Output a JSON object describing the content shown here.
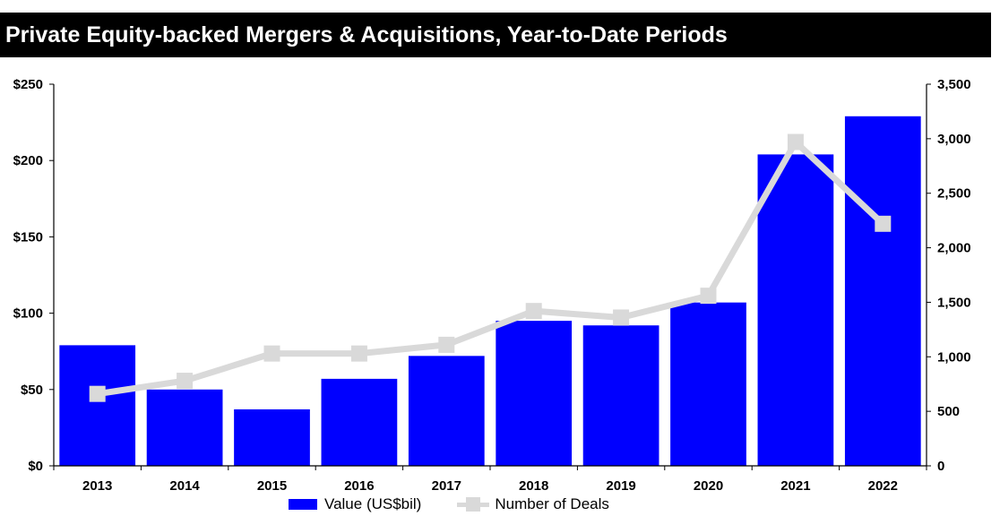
{
  "title": "Private Equity-backed Mergers & Acquisitions, Year-to-Date Periods",
  "legend": {
    "value_label": "Value (US$bil)",
    "deals_label": "Number of Deals"
  },
  "colors": {
    "bar": "#0000ff",
    "line": "#d9d9d9",
    "title_bg": "#000000"
  },
  "chart_data": {
    "type": "bar",
    "title": "Private Equity-backed Mergers & Acquisitions, Year-to-Date Periods",
    "categories": [
      "2013",
      "2014",
      "2015",
      "2016",
      "2017",
      "2018",
      "2019",
      "2020",
      "2021",
      "2022"
    ],
    "series": [
      {
        "name": "Value (US$bil)",
        "type": "bar",
        "axis": "left",
        "values": [
          79,
          50,
          37,
          57,
          72,
          95,
          92,
          107,
          204,
          229
        ]
      },
      {
        "name": "Number of Deals",
        "type": "line",
        "axis": "right",
        "values": [
          660,
          780,
          1030,
          1030,
          1110,
          1420,
          1360,
          1560,
          2970,
          2220
        ]
      }
    ],
    "left_axis": {
      "ylim": [
        0,
        250
      ],
      "ticks": [
        0,
        50,
        100,
        150,
        200,
        250
      ],
      "tick_labels": [
        "$0",
        "$50",
        "$100",
        "$150",
        "$200",
        "$250"
      ]
    },
    "right_axis": {
      "ylim": [
        0,
        3500
      ],
      "ticks": [
        0,
        500,
        1000,
        1500,
        2000,
        2500,
        3000,
        3500
      ],
      "tick_labels": [
        "0",
        "500",
        "1,000",
        "1,500",
        "2,000",
        "2,500",
        "3,000",
        "3,500"
      ]
    },
    "grid": false,
    "legend_position": "bottom"
  }
}
